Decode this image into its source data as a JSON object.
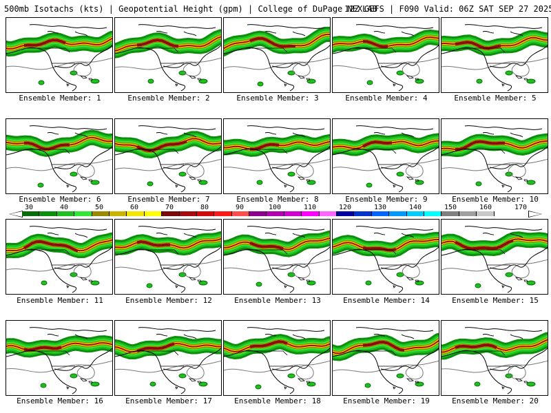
{
  "header": {
    "left": "500mb Isotachs (kts) | Geopotential Height (gpm) | College of DuPage NEXLAB",
    "right": "12Z GEFS | F090 Valid: 06Z SAT SEP 27 2025"
  },
  "legend": {
    "ticks": [
      "30",
      "40",
      "50",
      "60",
      "70",
      "80",
      "90",
      "100",
      "110",
      "120",
      "130",
      "140",
      "150",
      "160",
      "170"
    ],
    "colors": [
      "#0a6b0a",
      "#0d8f0d",
      "#1fbf1f",
      "#33e633",
      "#998a00",
      "#c9b400",
      "#f2e600",
      "#ffff00",
      "#7a0a0a",
      "#a60a0a",
      "#d20a0a",
      "#ff1a1a",
      "#ff4d4d",
      "#8b008b",
      "#b000b0",
      "#d000d0",
      "#ff00ff",
      "#ff66ff",
      "#0000a0",
      "#0033cc",
      "#0066ff",
      "#0099ff",
      "#00ccff",
      "#00ffff",
      "#808080",
      "#a0a0a0",
      "#c8c8c8"
    ]
  },
  "panels": [
    {
      "label": "Ensemble Member: 1"
    },
    {
      "label": "Ensemble Member: 2"
    },
    {
      "label": "Ensemble Member: 3"
    },
    {
      "label": "Ensemble Member: 4"
    },
    {
      "label": "Ensemble Member: 5"
    },
    {
      "label": "Ensemble Member: 6"
    },
    {
      "label": "Ensemble Member: 7"
    },
    {
      "label": "Ensemble Member: 8"
    },
    {
      "label": "Ensemble Member: 9"
    },
    {
      "label": "Ensemble Member: 10"
    },
    {
      "label": "Ensemble Member: 11"
    },
    {
      "label": "Ensemble Member: 12"
    },
    {
      "label": "Ensemble Member: 13"
    },
    {
      "label": "Ensemble Member: 14"
    },
    {
      "label": "Ensemble Member: 15"
    },
    {
      "label": "Ensemble Member: 16"
    },
    {
      "label": "Ensemble Member: 17"
    },
    {
      "label": "Ensemble Member: 18"
    },
    {
      "label": "Ensemble Member: 19"
    },
    {
      "label": "Ensemble Member: 20"
    }
  ]
}
